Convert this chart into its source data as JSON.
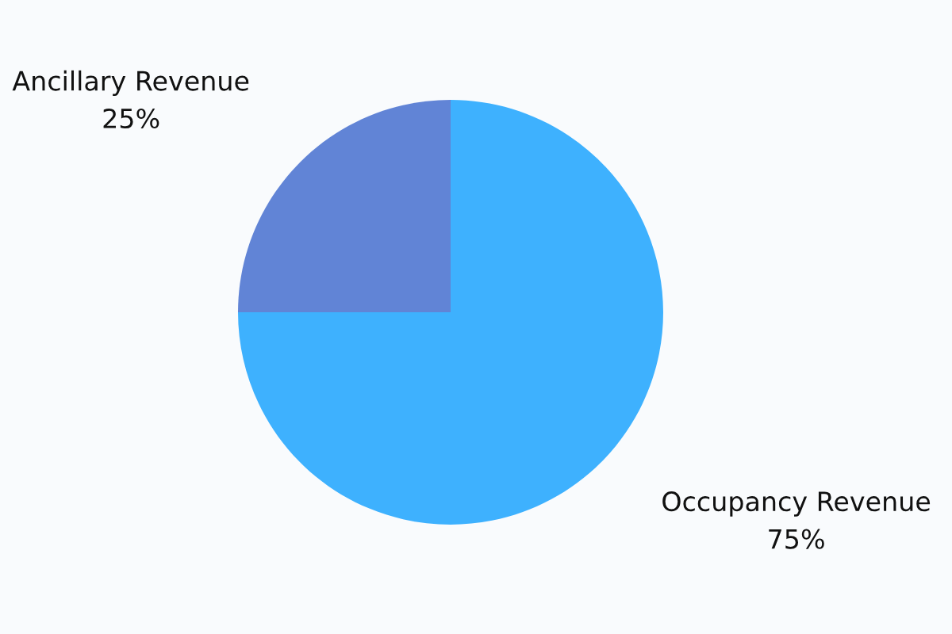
{
  "chart_data": {
    "type": "pie",
    "categories": [
      "Occupancy Revenue",
      "Ancillary Revenue"
    ],
    "values": [
      75,
      25
    ],
    "colors": [
      "#3eb1fe",
      "#6184d6"
    ],
    "value_labels": [
      "75%",
      "25%"
    ]
  }
}
